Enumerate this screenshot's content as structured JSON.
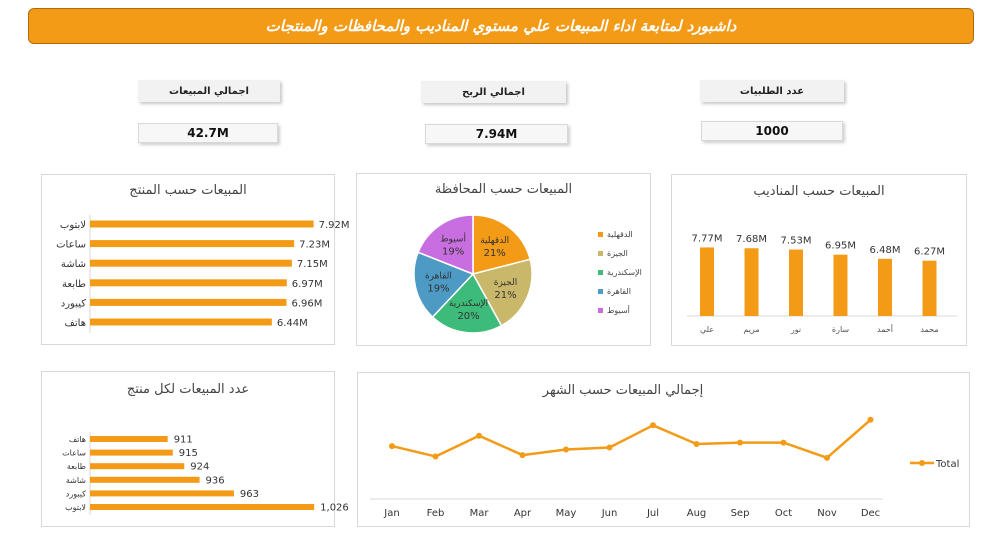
{
  "header": {
    "title": "داشبورد لمتابعة اداء المبيعات علي مستوي المناديب والمحافظات والمنتجات"
  },
  "kpis": {
    "sales": {
      "label": "اجمالي المبيعات",
      "value": "42.7M"
    },
    "profit": {
      "label": "اجمالي الربح",
      "value": "7.94M"
    },
    "orders": {
      "label": "عدد الطلبيات",
      "value": "1000"
    }
  },
  "colors": {
    "accent": "#f39b17"
  },
  "chart_data": [
    {
      "id": "product_sales",
      "type": "bar",
      "orientation": "horizontal",
      "title": "المبيعات حسب المنتج",
      "categories": [
        "لابتوب",
        "ساعات",
        "شاشة",
        "طابعة",
        "كيبورد",
        "هاتف"
      ],
      "values": [
        7.92,
        7.23,
        7.15,
        6.97,
        6.96,
        6.44
      ],
      "labels": [
        "7.92M",
        "7.23M",
        "7.15M",
        "6.97M",
        "6.96M",
        "6.44M"
      ],
      "xlim": [
        0,
        8.5
      ]
    },
    {
      "id": "governorate_sales",
      "type": "pie",
      "title": "المبيعات حسب المحافظة",
      "categories": [
        "الدقهلية",
        "الجيزة",
        "الإسكندرية",
        "القاهرة",
        "أسيوط"
      ],
      "values": [
        21,
        21,
        20,
        19,
        19
      ],
      "labels": [
        "21%",
        "21%",
        "20%",
        "19%",
        "19%"
      ],
      "colors": [
        "#f39b17",
        "#c9b86a",
        "#3dbb7a",
        "#4d9ac4",
        "#c86ee0"
      ],
      "legend": "right"
    },
    {
      "id": "rep_sales",
      "type": "bar",
      "orientation": "vertical",
      "title": "المبيعات حسب المناديب",
      "categories": [
        "علي",
        "مريم",
        "نور",
        "سارة",
        "أحمد",
        "محمد"
      ],
      "values": [
        7.77,
        7.68,
        7.53,
        6.95,
        6.48,
        6.27
      ],
      "labels": [
        "7.77M",
        "7.68M",
        "7.53M",
        "6.95M",
        "6.48M",
        "6.27M"
      ],
      "ylim": [
        0,
        8.5
      ]
    },
    {
      "id": "product_counts",
      "type": "bar",
      "orientation": "horizontal",
      "title": "عدد المبيعات لكل منتج",
      "categories": [
        "هاتف",
        "ساعات",
        "طابعة",
        "شاشة",
        "كيبورد",
        "لابتوب"
      ],
      "values": [
        911,
        915,
        924,
        936,
        963,
        1026
      ],
      "labels": [
        "911",
        "915",
        "924",
        "936",
        "963",
        "1,026"
      ],
      "xlim": [
        850,
        1040
      ]
    },
    {
      "id": "monthly_sales",
      "type": "line",
      "title": "إجمالي المبيعات حسب الشهر",
      "x": [
        "Jan",
        "Feb",
        "Mar",
        "Apr",
        "May",
        "Jun",
        "Jul",
        "Aug",
        "Sep",
        "Oct",
        "Nov",
        "Dec"
      ],
      "series": [
        {
          "name": "Total",
          "values": [
            3.55,
            3.4,
            3.7,
            3.42,
            3.5,
            3.53,
            3.85,
            3.58,
            3.6,
            3.6,
            3.38,
            3.93
          ]
        }
      ],
      "ylim": [
        2.8,
        4.1
      ],
      "legend": "right"
    }
  ]
}
